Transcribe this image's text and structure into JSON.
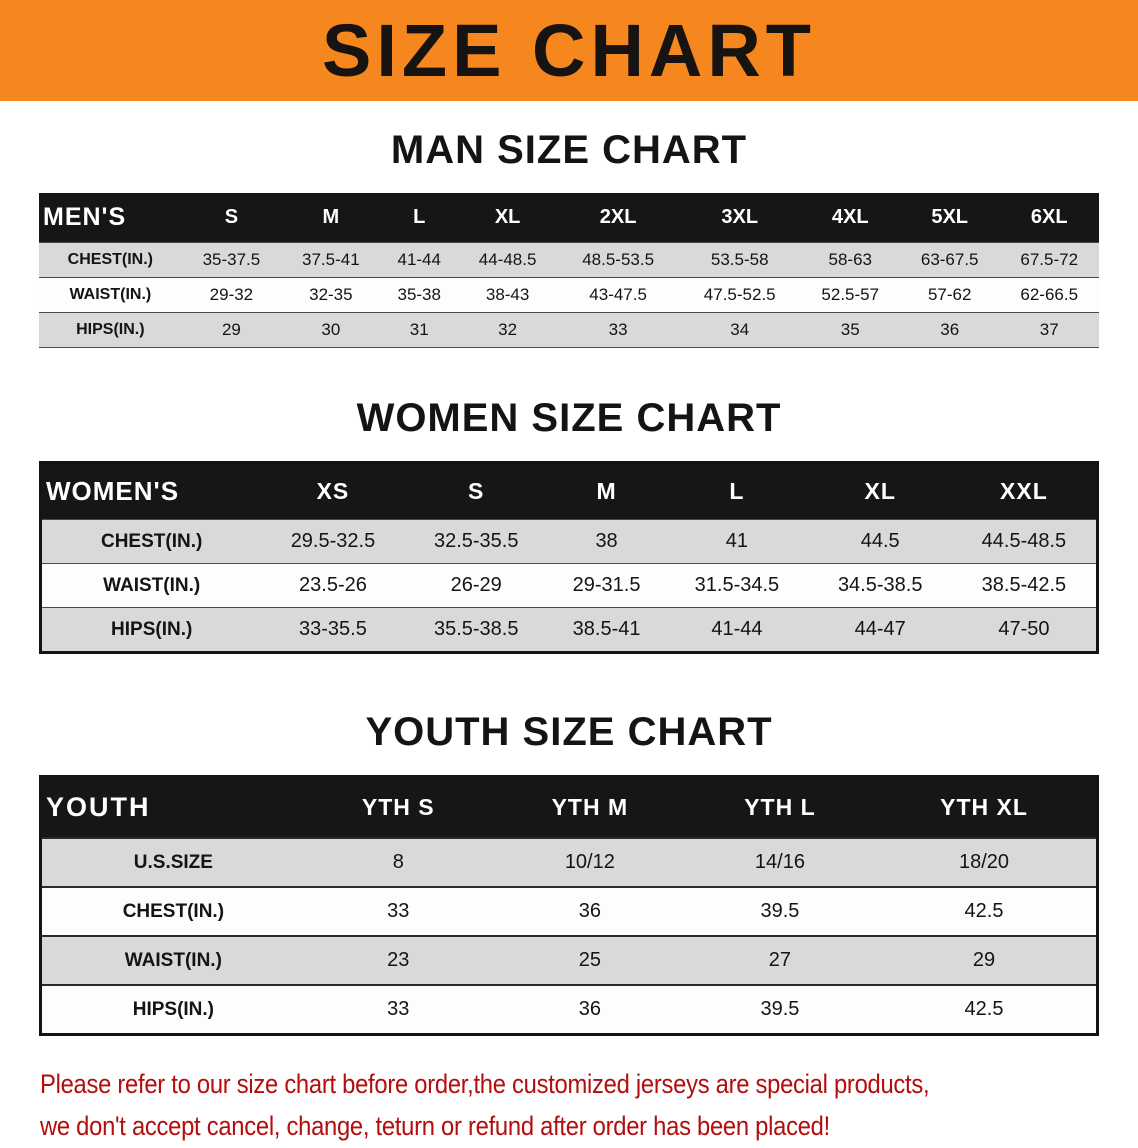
{
  "banner": {
    "title": "SIZE CHART"
  },
  "colors": {
    "banner_bg": "#f6871f",
    "header_bg": "#161616",
    "row_gray": "#d9d9d9",
    "notice_red": "#b30d0d"
  },
  "sections": [
    {
      "heading": "MAN SIZE CHART",
      "table": {
        "header_label": "MEN'S",
        "columns": [
          "S",
          "M",
          "L",
          "XL",
          "2XL",
          "3XL",
          "4XL",
          "5XL",
          "6XL"
        ],
        "rows": [
          {
            "label": "CHEST(IN.)",
            "values": [
              "35-37.5",
              "37.5-41",
              "41-44",
              "44-48.5",
              "48.5-53.5",
              "53.5-58",
              "58-63",
              "63-67.5",
              "67.5-72"
            ]
          },
          {
            "label": "WAIST(IN.)",
            "values": [
              "29-32",
              "32-35",
              "35-38",
              "38-43",
              "43-47.5",
              "47.5-52.5",
              "52.5-57",
              "57-62",
              "62-66.5"
            ]
          },
          {
            "label": "HIPS(IN.)",
            "values": [
              "29",
              "30",
              "31",
              "32",
              "33",
              "34",
              "35",
              "36",
              "37"
            ]
          }
        ]
      }
    },
    {
      "heading": "WOMEN SIZE CHART",
      "table": {
        "header_label": "WOMEN'S",
        "columns": [
          "XS",
          "S",
          "M",
          "L",
          "XL",
          "XXL"
        ],
        "rows": [
          {
            "label": "CHEST(IN.)",
            "values": [
              "29.5-32.5",
              "32.5-35.5",
              "38",
              "41",
              "44.5",
              "44.5-48.5"
            ]
          },
          {
            "label": "WAIST(IN.)",
            "values": [
              "23.5-26",
              "26-29",
              "29-31.5",
              "31.5-34.5",
              "34.5-38.5",
              "38.5-42.5"
            ]
          },
          {
            "label": "HIPS(IN.)",
            "values": [
              "33-35.5",
              "35.5-38.5",
              "38.5-41",
              "41-44",
              "44-47",
              "47-50"
            ]
          }
        ]
      }
    },
    {
      "heading": "YOUTH SIZE CHART",
      "table": {
        "header_label": "YOUTH",
        "columns": [
          "YTH S",
          "YTH M",
          "YTH L",
          "YTH XL"
        ],
        "rows": [
          {
            "label": "U.S.SIZE",
            "values": [
              "8",
              "10/12",
              "14/16",
              "18/20"
            ]
          },
          {
            "label": "CHEST(IN.)",
            "values": [
              "33",
              "36",
              "39.5",
              "42.5"
            ]
          },
          {
            "label": "WAIST(IN.)",
            "values": [
              "23",
              "25",
              "27",
              "29"
            ]
          },
          {
            "label": "HIPS(IN.)",
            "values": [
              "33",
              "36",
              "39.5",
              "42.5"
            ]
          }
        ]
      }
    }
  ],
  "notice": {
    "line1": "Please refer to our size chart before order,the customized jerseys are special products,",
    "line2": "we don't accept cancel, change, teturn or refund after order has been placed!"
  }
}
